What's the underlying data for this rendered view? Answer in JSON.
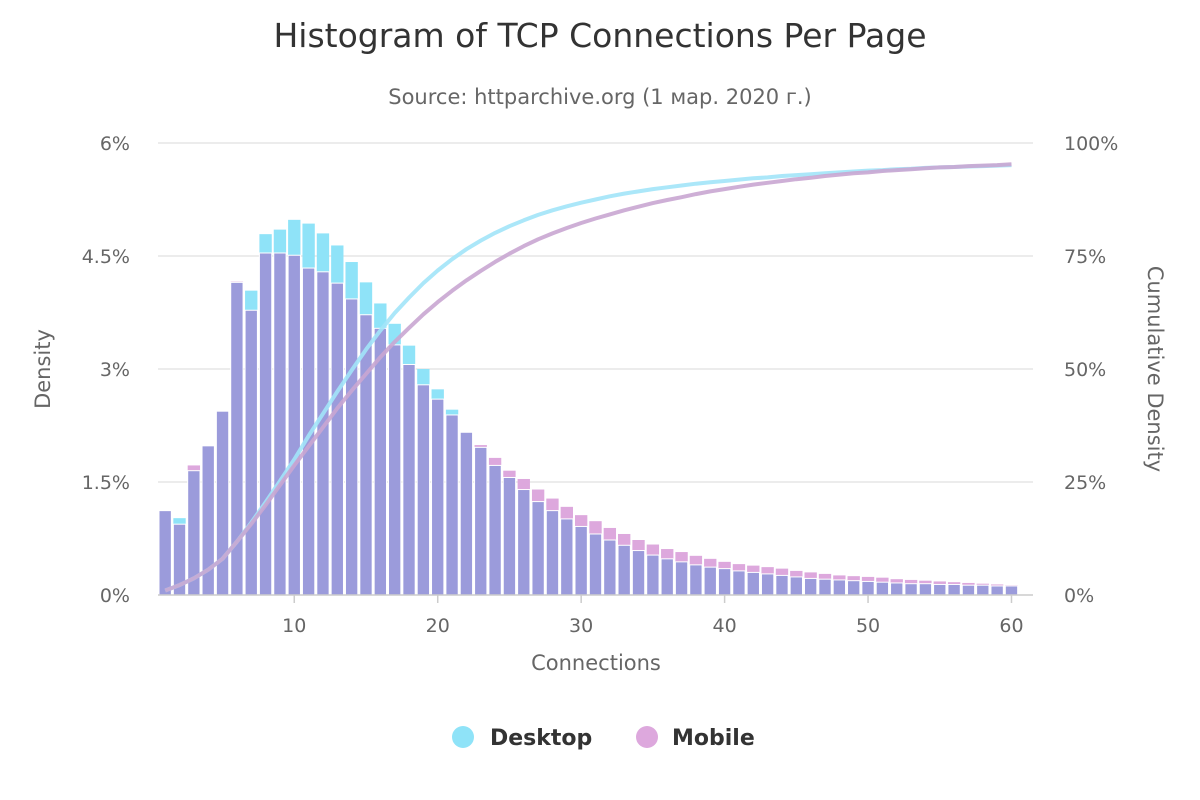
{
  "chart_data": {
    "type": "bar",
    "title": "Histogram of TCP Connections Per Page",
    "subtitle": "Source: httparchive.org (1 мар. 2020 г.)",
    "xlabel": "Connections",
    "ylabel_left": "Density",
    "ylabel_right": "Cumulative Density",
    "x_ticks": [
      "10",
      "20",
      "30",
      "40",
      "50",
      "60"
    ],
    "y_left_ticks": [
      "0%",
      "1.5%",
      "3%",
      "4.5%",
      "6%"
    ],
    "y_right_ticks": [
      "0%",
      "25%",
      "50%",
      "75%",
      "100%"
    ],
    "xlim": [
      0.5,
      61.5
    ],
    "ylim_left": [
      0,
      6
    ],
    "ylim_right": [
      0,
      100
    ],
    "grid": true,
    "legend_position": "bottom-center",
    "x": [
      1,
      2,
      3,
      4,
      5,
      6,
      7,
      8,
      9,
      10,
      11,
      12,
      13,
      14,
      15,
      16,
      17,
      18,
      19,
      20,
      21,
      22,
      23,
      24,
      25,
      26,
      27,
      28,
      29,
      30,
      31,
      32,
      33,
      34,
      35,
      36,
      37,
      38,
      39,
      40,
      41,
      42,
      43,
      44,
      45,
      46,
      47,
      48,
      49,
      50,
      51,
      52,
      53,
      54,
      55,
      56,
      57,
      58,
      59,
      60
    ],
    "series": [
      {
        "name": "Desktop",
        "color": "#8fe3f8",
        "values": [
          1.12,
          1.02,
          1.65,
          1.98,
          2.44,
          4.15,
          4.04,
          4.79,
          4.85,
          4.98,
          4.93,
          4.8,
          4.64,
          4.42,
          4.15,
          3.87,
          3.6,
          3.31,
          3.0,
          2.73,
          2.46,
          2.16,
          1.96,
          1.72,
          1.56,
          1.4,
          1.24,
          1.12,
          1.01,
          0.91,
          0.81,
          0.73,
          0.66,
          0.59,
          0.53,
          0.48,
          0.44,
          0.4,
          0.37,
          0.35,
          0.32,
          0.3,
          0.28,
          0.26,
          0.24,
          0.22,
          0.21,
          0.2,
          0.19,
          0.18,
          0.17,
          0.16,
          0.15,
          0.15,
          0.14,
          0.14,
          0.13,
          0.13,
          0.12,
          0.12
        ],
        "cumulative": [
          1.0,
          2.2,
          3.7,
          5.6,
          8.0,
          11.8,
          16.0,
          20.5,
          25.2,
          30.0,
          35.2,
          40.1,
          45.0,
          49.7,
          54.3,
          58.5,
          62.4,
          65.8,
          69.0,
          71.8,
          74.3,
          76.5,
          78.4,
          80.1,
          81.6,
          82.9,
          84.1,
          85.1,
          86.0,
          86.8,
          87.5,
          88.2,
          88.8,
          89.3,
          89.8,
          90.2,
          90.6,
          91.0,
          91.3,
          91.6,
          91.9,
          92.2,
          92.4,
          92.7,
          92.9,
          93.1,
          93.3,
          93.5,
          93.7,
          93.9,
          94.0,
          94.2,
          94.3,
          94.5,
          94.6,
          94.7,
          94.8,
          94.9,
          95.0,
          95.1
        ]
      },
      {
        "name": "Mobile",
        "color": "#dda8dd",
        "values": [
          1.12,
          0.94,
          1.72,
          1.98,
          2.44,
          4.16,
          3.78,
          4.54,
          4.54,
          4.51,
          4.34,
          4.29,
          4.14,
          3.93,
          3.72,
          3.54,
          3.32,
          3.06,
          2.79,
          2.6,
          2.39,
          2.16,
          1.99,
          1.82,
          1.65,
          1.54,
          1.4,
          1.28,
          1.17,
          1.06,
          0.98,
          0.89,
          0.81,
          0.73,
          0.67,
          0.61,
          0.57,
          0.52,
          0.48,
          0.44,
          0.41,
          0.39,
          0.37,
          0.35,
          0.32,
          0.3,
          0.28,
          0.26,
          0.25,
          0.24,
          0.23,
          0.21,
          0.2,
          0.19,
          0.18,
          0.17,
          0.16,
          0.15,
          0.14,
          0.13
        ],
        "cumulative": [
          1.0,
          2.2,
          3.7,
          5.6,
          8.0,
          11.8,
          15.7,
          19.9,
          24.3,
          28.7,
          32.9,
          37.1,
          41.3,
          45.2,
          48.9,
          52.6,
          56.0,
          59.1,
          62.1,
          64.8,
          67.3,
          69.6,
          71.7,
          73.7,
          75.5,
          77.2,
          78.7,
          80.0,
          81.2,
          82.3,
          83.3,
          84.2,
          85.1,
          85.9,
          86.7,
          87.4,
          88.0,
          88.7,
          89.3,
          89.8,
          90.3,
          90.8,
          91.2,
          91.6,
          92.0,
          92.3,
          92.7,
          93.0,
          93.3,
          93.5,
          93.8,
          94.0,
          94.2,
          94.4,
          94.6,
          94.7,
          94.9,
          95.0,
          95.1,
          95.3
        ]
      }
    ],
    "overlap_color": "#9b9bdb",
    "curve_colors": [
      "#a2e4f8",
      "#c9a6d1"
    ]
  }
}
